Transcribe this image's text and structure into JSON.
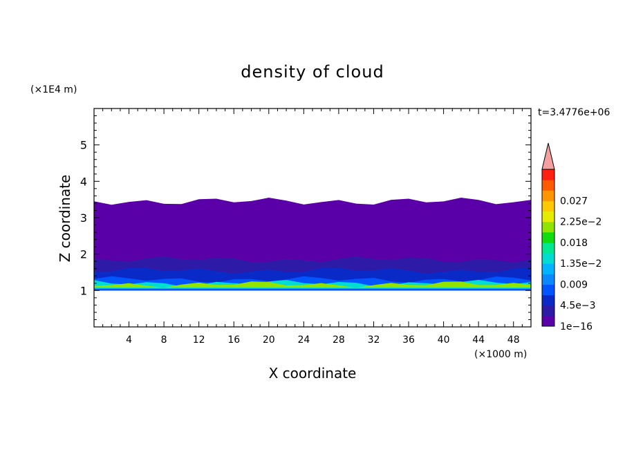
{
  "chart_data": {
    "type": "heatmap",
    "title": "density of cloud",
    "xlabel": "X coordinate",
    "ylabel": "Z coordinate",
    "x_unit_label": "(×1000 m)",
    "y_unit_label": "(×1E4 m)",
    "time_label": "t=3.4776e+06",
    "xlim": [
      0,
      50
    ],
    "ylim": [
      0,
      6
    ],
    "x_ticks": [
      "4",
      "8",
      "12",
      "16",
      "20",
      "24",
      "28",
      "32",
      "36",
      "40",
      "44",
      "48"
    ],
    "x_tick_values": [
      4,
      8,
      12,
      16,
      20,
      24,
      28,
      32,
      36,
      40,
      44,
      48
    ],
    "y_ticks": [
      "1",
      "2",
      "3",
      "4",
      "5"
    ],
    "y_tick_values": [
      1,
      2,
      3,
      4,
      5
    ],
    "colorbar": {
      "labels": [
        "0.027",
        "2.25e−2",
        "0.018",
        "1.35e−2",
        "0.009",
        "4.5e−3",
        "1e−16"
      ],
      "label_values": [
        0.027,
        0.0225,
        0.018,
        0.0135,
        0.009,
        0.0045,
        0
      ],
      "colors": [
        "#5a00a8",
        "#2d1ba8",
        "#0a2ac8",
        "#0055ff",
        "#0a88ff",
        "#00b4ff",
        "#00dcd2",
        "#00e890",
        "#10dc10",
        "#90e400",
        "#e6ec00",
        "#ffc800",
        "#ff9600",
        "#ff5a00",
        "#ff2010"
      ],
      "extend_color": "#f5a0a0"
    },
    "cloud_layers": [
      {
        "z_bottom": 1.0,
        "z_top": 3.45,
        "density": 0.0004
      },
      {
        "z_bottom": 1.0,
        "z_top": 2.45,
        "density": 0.001
      },
      {
        "z_bottom": 1.0,
        "z_top": 1.85,
        "density": 0.002
      },
      {
        "z_bottom": 1.0,
        "z_top": 1.55,
        "density": 0.004
      },
      {
        "z_bottom": 1.0,
        "z_top": 1.3,
        "density": 0.007
      },
      {
        "z_bottom": 1.05,
        "z_top": 1.2,
        "density": 0.012
      },
      {
        "z_bottom": 1.08,
        "z_top": 1.17,
        "density": 0.017
      }
    ],
    "grid": false,
    "legend": "colorbar-right"
  }
}
